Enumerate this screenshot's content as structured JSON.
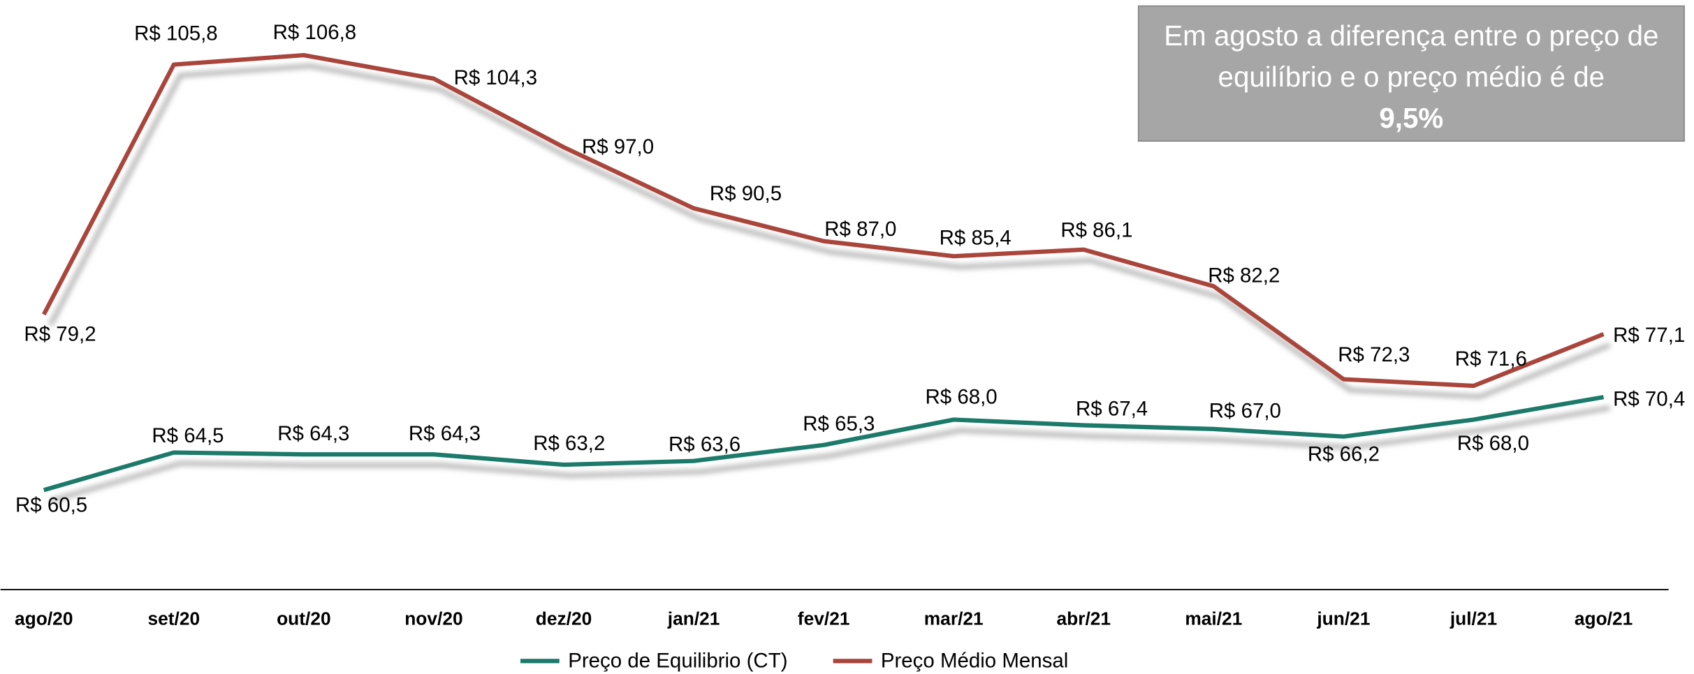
{
  "chart_data": {
    "type": "line",
    "categories": [
      "ago/20",
      "set/20",
      "out/20",
      "nov/20",
      "dez/20",
      "jan/21",
      "fev/21",
      "mar/21",
      "abr/21",
      "mai/21",
      "jun/21",
      "jul/21",
      "ago/21"
    ],
    "series": [
      {
        "name": "Preço de Equilibrio (CT)",
        "color": "#1b7a6b",
        "values": [
          60.5,
          64.5,
          64.3,
          64.3,
          63.2,
          63.6,
          65.3,
          68.0,
          67.4,
          67.0,
          66.2,
          68.0,
          70.4
        ],
        "value_labels": [
          "R$ 60,5",
          "R$ 64,5",
          "R$ 64,3",
          "R$ 64,3",
          "R$ 63,2",
          "R$ 63,6",
          "R$ 65,3",
          "R$ 68,0",
          "R$ 67,4",
          "R$ 67,0",
          "R$ 66,2",
          "R$ 68,0",
          "R$ 70,4"
        ]
      },
      {
        "name": "Preço Médio Mensal",
        "color": "#a9443b",
        "values": [
          79.2,
          105.8,
          106.8,
          104.3,
          97.0,
          90.5,
          87.0,
          85.4,
          86.1,
          82.2,
          72.3,
          71.6,
          77.1
        ],
        "value_labels": [
          "R$ 79,2",
          "R$ 105,8",
          "R$ 106,8",
          "R$ 104,3",
          "R$ 97,0",
          "R$ 90,5",
          "R$ 87,0",
          "R$ 85,4",
          "R$ 86,1",
          "R$ 82,2",
          "R$ 72,3",
          "R$ 71,6",
          "R$ 77,1"
        ]
      }
    ],
    "annotation": "Em agosto a diferença entre o preço de equilíbrio e o preço médio é de",
    "annotation_highlight": "9,5%"
  }
}
